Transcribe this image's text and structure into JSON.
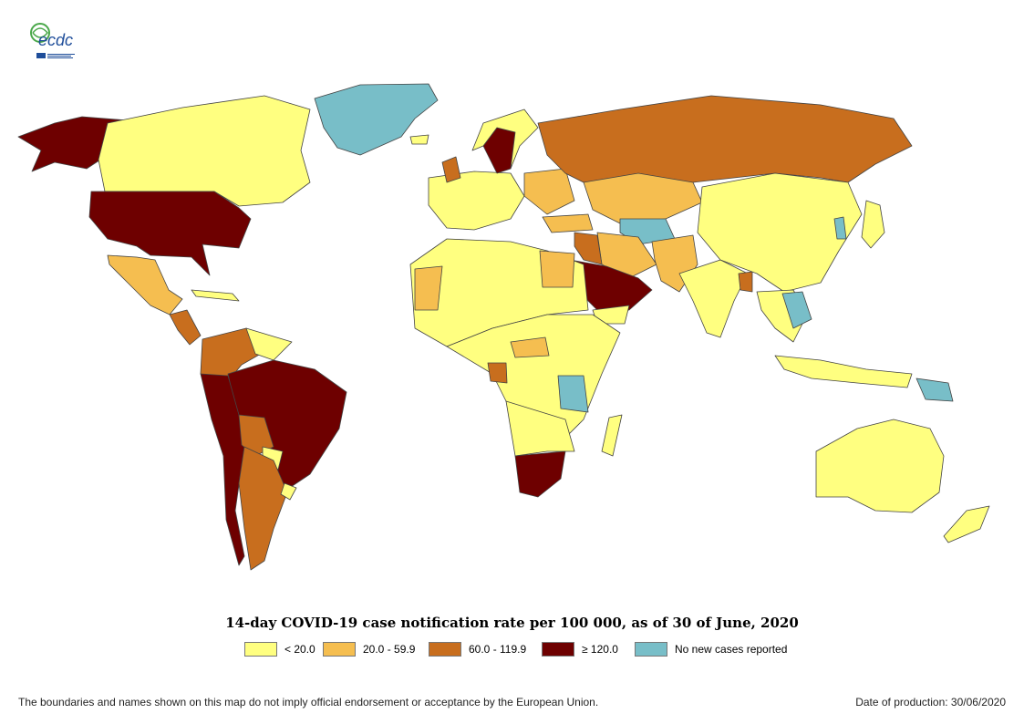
{
  "title": "14-day COVID-19 case notification rate per 100 000, as of 30 of June, 2020",
  "logo": {
    "text": "ecdc",
    "icon": "ecdc-logo"
  },
  "legend": [
    {
      "label": "< 20.0",
      "color": "#ffff80"
    },
    {
      "label": "20.0 - 59.9",
      "color": "#f5be50"
    },
    {
      "label": "60.0 - 119.9",
      "color": "#c86e1e"
    },
    {
      "label": "≥ 120.0",
      "color": "#6e0000"
    },
    {
      "label": "No new cases reported",
      "color": "#78bec8"
    }
  ],
  "footer": {
    "disclaimer": "The boundaries and names shown on this map do not imply official endorsement or acceptance by the European Union.",
    "production_date": "Date of production: 30/06/2020"
  },
  "colors": {
    "border": "#444444",
    "ocean": "#ffffff"
  }
}
